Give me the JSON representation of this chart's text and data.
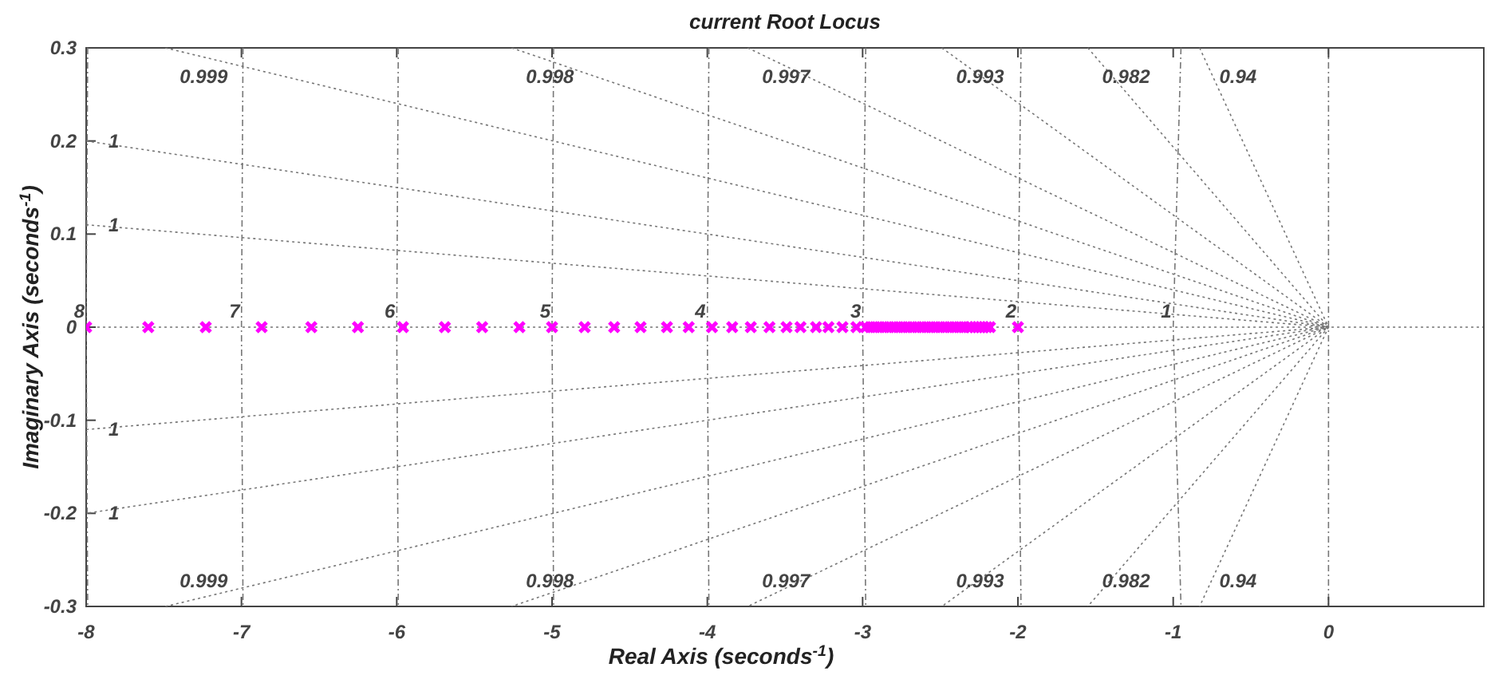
{
  "chart_data": {
    "type": "line",
    "title": "current Root Locus",
    "xlabel": "Real Axis (seconds$^{-1}$)",
    "ylabel": "Imaginary Axis (seconds$^{-1}$)",
    "xlim": [
      -8,
      1
    ],
    "xticks": [
      -8,
      -7,
      -6,
      -5,
      -4,
      -3,
      -2,
      -1,
      0
    ],
    "ylim": [
      -0.3,
      0.3
    ],
    "yticks": [
      -0.3,
      -0.2,
      -0.1,
      0,
      0.1,
      0.2,
      0.3
    ],
    "annotations": [
      {
        "text": "0.999",
        "x": -7.49,
        "y": 0.3
      },
      {
        "text": "0.998",
        "x": -5.26,
        "y": 0.3
      },
      {
        "text": "0.997",
        "x": -3.74,
        "y": 0.3
      },
      {
        "text": "0.993",
        "x": -2.49,
        "y": 0.3
      },
      {
        "text": "0.982",
        "x": -1.55,
        "y": 0.3
      },
      {
        "text": "0.94",
        "x": -0.83,
        "y": 0.3
      },
      {
        "text": "1",
        "x": -8,
        "y": 0.2
      },
      {
        "text": "1",
        "x": -8,
        "y": 0.11
      },
      {
        "text": "1",
        "x": -8,
        "y": -0.11
      },
      {
        "text": "1",
        "x": -8,
        "y": -0.2
      },
      {
        "text": "0.999",
        "x": -7.49,
        "y": -0.3
      },
      {
        "text": "0.998",
        "x": -5.26,
        "y": -0.3
      },
      {
        "text": "0.997",
        "x": -3.74,
        "y": -0.3
      },
      {
        "text": "0.993",
        "x": -2.49,
        "y": -0.3
      },
      {
        "text": "0.982",
        "x": -1.55,
        "y": -0.3
      },
      {
        "text": "0.94",
        "x": -0.83,
        "y": -0.3
      },
      {
        "text": "8",
        "x": -8,
        "y": 0
      },
      {
        "text": "7",
        "x": -7,
        "y": 0
      },
      {
        "text": "6",
        "x": -6,
        "y": 0
      },
      {
        "text": "5",
        "x": -5,
        "y": 0
      },
      {
        "text": "4",
        "x": -4,
        "y": 0
      },
      {
        "text": "3",
        "x": -3,
        "y": 0
      },
      {
        "text": "2",
        "x": -2,
        "y": 0
      },
      {
        "text": "1",
        "x": -1,
        "y": 0
      }
    ],
    "ref_lines": [
      {
        "axis": "y",
        "value": 0,
        "color": "#777777",
        "line_style": "dotted"
      },
      {
        "axis": "x",
        "value": 0,
        "color": "#777777",
        "line_style": "dashed"
      }
    ],
    "series": [
      {
        "color": "#777777",
        "line_style": "dotted",
        "x": [
          -7.49,
          0,
          -7.49
        ],
        "values": [
          0.3,
          0,
          -0.3
        ]
      },
      {
        "color": "#777777",
        "line_style": "dotted",
        "x": [
          -5.26,
          0,
          -5.26
        ],
        "values": [
          0.3,
          0,
          -0.3
        ]
      },
      {
        "color": "#777777",
        "line_style": "dotted",
        "x": [
          -3.74,
          0,
          -3.74
        ],
        "values": [
          0.3,
          0,
          -0.3
        ]
      },
      {
        "color": "#777777",
        "line_style": "dotted",
        "x": [
          -2.49,
          0,
          -2.49
        ],
        "values": [
          0.3,
          0,
          -0.3
        ]
      },
      {
        "color": "#777777",
        "line_style": "dotted",
        "x": [
          -1.55,
          0,
          -1.55
        ],
        "values": [
          0.3,
          0,
          -0.3
        ]
      },
      {
        "color": "#777777",
        "line_style": "dotted",
        "x": [
          -0.83,
          0,
          -0.83
        ],
        "values": [
          0.3,
          0,
          -0.3
        ]
      },
      {
        "color": "#777777",
        "line_style": "dotted",
        "x": [
          -8,
          0,
          -8
        ],
        "values": [
          0.2,
          0,
          -0.2
        ]
      },
      {
        "color": "#777777",
        "line_style": "dotted",
        "x": [
          -8,
          0,
          -8
        ],
        "values": [
          0.11,
          0,
          -0.11
        ]
      },
      {
        "color": "#777777",
        "line_style": "dashed",
        "x": [
          -7.99,
          -8,
          -7.99
        ],
        "values": [
          0.3,
          0,
          -0.3
        ]
      },
      {
        "color": "#777777",
        "line_style": "dashed",
        "x": [
          -6.99,
          -7,
          -6.99
        ],
        "values": [
          0.3,
          0,
          -0.3
        ]
      },
      {
        "color": "#777777",
        "line_style": "dashed",
        "x": [
          -5.99,
          -6,
          -5.99
        ],
        "values": [
          0.3,
          0,
          -0.3
        ]
      },
      {
        "color": "#777777",
        "line_style": "dashed",
        "x": [
          -4.99,
          -5,
          -4.99
        ],
        "values": [
          0.3,
          0,
          -0.3
        ]
      },
      {
        "color": "#777777",
        "line_style": "dashed",
        "x": [
          -3.99,
          -4,
          -3.99
        ],
        "values": [
          0.3,
          0,
          -0.3
        ]
      },
      {
        "color": "#777777",
        "line_style": "dashed",
        "x": [
          -2.98,
          -3,
          -2.98
        ],
        "values": [
          0.3,
          0,
          -0.3
        ]
      },
      {
        "color": "#777777",
        "line_style": "dashed",
        "x": [
          -1.98,
          -2,
          -1.98
        ],
        "values": [
          0.3,
          0,
          -0.3
        ]
      },
      {
        "color": "#777777",
        "line_style": "dashed",
        "x": [
          -0.95,
          -1,
          -0.95
        ],
        "values": [
          0.3,
          0,
          -0.3
        ]
      },
      {
        "type": "scatter",
        "marker": "cross",
        "color": "#ff00ff",
        "x": [
          -8,
          -7.6,
          -7.23,
          -6.87,
          -6.55,
          -6.25,
          -5.96,
          -5.69,
          -5.45,
          -5.21,
          -5,
          -4.79,
          -4.6,
          -4.43,
          -4.26,
          -4.12,
          -3.97,
          -3.84,
          -3.72,
          -3.6,
          -3.49,
          -3.4,
          -3.3,
          -3.22,
          -3.13,
          -3.04,
          -2.98,
          -2.95,
          -2.92,
          -2.89,
          -2.86,
          -2.83,
          -2.8,
          -2.77,
          -2.74,
          -2.71,
          -2.68,
          -2.65,
          -2.62,
          -2.59,
          -2.56,
          -2.53,
          -2.5,
          -2.47,
          -2.44,
          -2.41,
          -2.38,
          -2.35,
          -2.32,
          -2.3,
          -2.28,
          -2.26,
          -2.24,
          -2.22,
          -2.2,
          -2.18,
          -2
        ],
        "values": [
          0,
          0,
          0,
          0,
          0,
          0,
          0,
          0,
          0,
          0,
          0,
          0,
          0,
          0,
          0,
          0,
          0,
          0,
          0,
          0,
          0,
          0,
          0,
          0,
          0,
          0,
          0,
          0,
          0,
          0,
          0,
          0,
          0,
          0,
          0,
          0,
          0,
          0,
          0,
          0,
          0,
          0,
          0,
          0,
          0,
          0,
          0,
          0,
          0,
          0,
          0,
          0,
          0,
          0,
          0,
          0,
          0
        ]
      }
    ]
  }
}
